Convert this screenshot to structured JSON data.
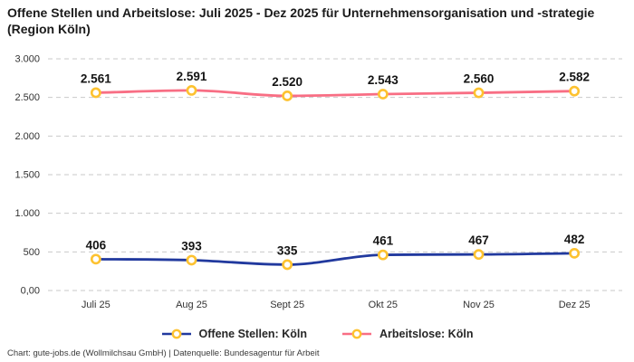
{
  "header": {
    "title": "Offene Stellen und Arbeitslose: Juli 2025 - Dez 2025 für Unternehmensorganisation und -strategie (Region Köln)"
  },
  "chart_data": {
    "type": "line",
    "categories": [
      "Juli 25",
      "Aug 25",
      "Sept 25",
      "Okt 25",
      "Nov 25",
      "Dez 25"
    ],
    "series": [
      {
        "name": "Offene Stellen: Köln",
        "values": [
          406,
          393,
          335,
          461,
          467,
          482
        ],
        "labels": [
          "406",
          "393",
          "335",
          "461",
          "467",
          "482"
        ],
        "color": "#21399e"
      },
      {
        "name": "Arbeitslose: Köln",
        "values": [
          2561,
          2591,
          2520,
          2543,
          2560,
          2582
        ],
        "labels": [
          "2.561",
          "2.591",
          "2.520",
          "2.543",
          "2.560",
          "2.582"
        ],
        "color": "#f86e84"
      }
    ],
    "marker": {
      "fill": "#ffffff",
      "stroke": "#fdc230"
    },
    "yticks": [
      {
        "value": 0,
        "label": "0,00"
      },
      {
        "value": 500,
        "label": "500"
      },
      {
        "value": 1000,
        "label": "1.000"
      },
      {
        "value": 1500,
        "label": "1.500"
      },
      {
        "value": 2000,
        "label": "2.000"
      },
      {
        "value": 2500,
        "label": "2.500"
      },
      {
        "value": 3000,
        "label": "3.000"
      }
    ],
    "ylim": [
      0,
      3000
    ],
    "grid": "dashed-horizontal",
    "gridline_color": "#c9c9c9",
    "legend_position": "bottom"
  },
  "footer": {
    "credit": "Chart: gute-jobs.de (Wollmilchsau GmbH) | Datenquelle: Bundesagentur für Arbeit"
  }
}
